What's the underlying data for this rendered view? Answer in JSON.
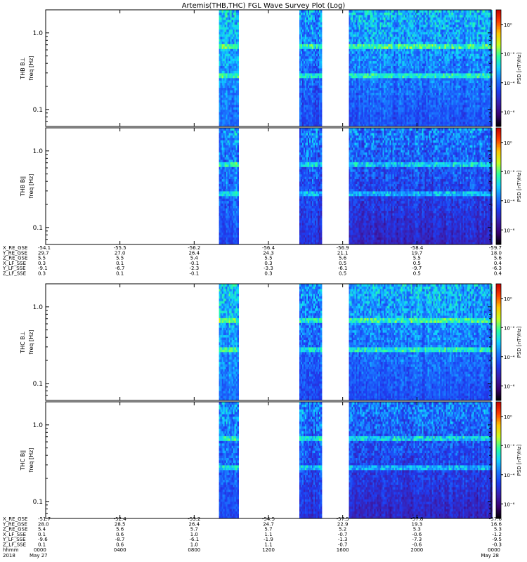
{
  "title": "Artemis(THB,THC) FGL Wave Survey Plot (Log)",
  "colorbar": {
    "label": "PSD [nT²/Hz]",
    "tick_labels": [
      "10⁰",
      "10⁻²",
      "10⁻⁴",
      "10⁻⁶"
    ],
    "tick_exponents": [
      0,
      -2,
      -4,
      -6
    ],
    "colors": [
      "#000000",
      "#3a0070",
      "#3a1fb0",
      "#1e3cf0",
      "#1a78ff",
      "#10d2ff",
      "#28ff9e",
      "#c8ff1e",
      "#ffc400",
      "#ff3c00",
      "#c80000"
    ]
  },
  "chart_data": [
    {
      "type": "heatmap",
      "ylabel": "THB B⊥",
      "yunits": "freq [Hz]",
      "scale": "log",
      "ylim": [
        0.06,
        2.0
      ],
      "yticks": [
        {
          "value": 1.0,
          "label": "1.0"
        },
        {
          "value": 0.1,
          "label": "0.1"
        }
      ],
      "zlabel": "PSD [nT²/Hz]",
      "zlim_exponent": [
        -7,
        1
      ],
      "data_segments": [
        {
          "start": "0920",
          "end": "1020",
          "psd_log_range": [
            -4.5,
            -3
          ]
        },
        {
          "start": "1340",
          "end": "1450",
          "psd_log_range": [
            -5,
            -3.5
          ]
        },
        {
          "start": "1620",
          "end": "2420",
          "psd_log_range": [
            -5,
            -3.2
          ]
        }
      ]
    },
    {
      "type": "heatmap",
      "ylabel": "THB B∥",
      "yunits": "freq [Hz]",
      "scale": "log",
      "ylim": [
        0.06,
        2.0
      ],
      "yticks": [
        {
          "value": 1.0,
          "label": "1.0"
        },
        {
          "value": 0.1,
          "label": "0.1"
        }
      ],
      "zlabel": "PSD [nT²/Hz]",
      "zlim_exponent": [
        -7,
        1
      ],
      "data_segments": [
        {
          "start": "0920",
          "end": "1020",
          "psd_log_range": [
            -5,
            -3.5
          ]
        },
        {
          "start": "1340",
          "end": "1450",
          "psd_log_range": [
            -5.5,
            -3.8
          ]
        },
        {
          "start": "1620",
          "end": "2420",
          "psd_log_range": [
            -6,
            -3.8
          ]
        }
      ]
    },
    {
      "type": "heatmap",
      "ylabel": "THC B⊥",
      "yunits": "freq [Hz]",
      "scale": "log",
      "ylim": [
        0.06,
        2.0
      ],
      "yticks": [
        {
          "value": 1.0,
          "label": "1.0"
        },
        {
          "value": 0.1,
          "label": "0.1"
        }
      ],
      "zlabel": "PSD [nT²/Hz]",
      "zlim_exponent": [
        -7,
        1
      ],
      "data_segments": [
        {
          "start": "0920",
          "end": "1020",
          "psd_log_range": [
            -4.5,
            -3
          ]
        },
        {
          "start": "1340",
          "end": "1450",
          "psd_log_range": [
            -5,
            -3.5
          ]
        },
        {
          "start": "1620",
          "end": "2420",
          "psd_log_range": [
            -5,
            -3.2
          ]
        }
      ]
    },
    {
      "type": "heatmap",
      "ylabel": "THC B∥",
      "yunits": "freq [Hz]",
      "scale": "log",
      "ylim": [
        0.06,
        2.0
      ],
      "yticks": [
        {
          "value": 1.0,
          "label": "1.0"
        },
        {
          "value": 0.1,
          "label": "0.1"
        }
      ],
      "zlabel": "PSD [nT²/Hz]",
      "zlim_exponent": [
        -7,
        1
      ],
      "data_segments": [
        {
          "start": "0920",
          "end": "1020",
          "psd_log_range": [
            -5,
            -3.5
          ]
        },
        {
          "start": "1340",
          "end": "1450",
          "psd_log_range": [
            -5.5,
            -3.8
          ]
        },
        {
          "start": "1620",
          "end": "2420",
          "psd_log_range": [
            -6,
            -3.8
          ]
        }
      ]
    }
  ],
  "x_axis": {
    "time_ticks": [
      "0000",
      "0400",
      "0800",
      "1200",
      "1600",
      "2000",
      "0000"
    ],
    "tick_hours": [
      0,
      4,
      8,
      12,
      16,
      20,
      24
    ],
    "range_hours": [
      0,
      24
    ]
  },
  "ephemeris": [
    {
      "tick_hours": [
        0,
        4,
        8,
        12,
        16,
        20,
        24
      ],
      "rows": [
        {
          "label": "X_RE_GSE",
          "values": [
            "-54.1",
            "-55.5",
            "-56.2",
            "-56.4",
            "-56.9",
            "-58.4",
            "-59.7"
          ]
        },
        {
          "label": "Y_RE_GSE",
          "values": [
            "29.7",
            "27.0",
            "26.4",
            "24.3",
            "21.1",
            "19.7",
            "18.0"
          ]
        },
        {
          "label": "Z_RE_GSE",
          "values": [
            "5.5",
            "5.5",
            "5.4",
            "5.5",
            "5.6",
            "5.5",
            "5.6"
          ]
        },
        {
          "label": "X_LF_SSE",
          "values": [
            "0.3",
            "0.1",
            "-0.1",
            "0.3",
            "0.5",
            "0.5",
            "0.4"
          ]
        },
        {
          "label": "Y_LF_SSE",
          "values": [
            "-9.1",
            "-6.7",
            "-2.3",
            "-3.3",
            "-6.1",
            "-9.7",
            "-6.3"
          ]
        },
        {
          "label": "Z_LF_SSE",
          "values": [
            "0.3",
            "0.1",
            "-0.1",
            "0.3",
            "0.5",
            "0.5",
            "0.4"
          ]
        }
      ]
    },
    {
      "tick_hours": [
        0,
        4,
        8,
        12,
        16,
        20,
        24
      ],
      "rows": [
        {
          "label": "X_RE_GSE",
          "values": [
            "-51.7",
            "-52.4",
            "-53.2",
            "-54.5",
            "-57.5",
            "-57.8",
            "-57.6"
          ]
        },
        {
          "label": "Y_RE_GSE",
          "values": [
            "28.0",
            "28.5",
            "26.4",
            "24.7",
            "22.9",
            "19.3",
            "16.6"
          ]
        },
        {
          "label": "Z_RE_GSE",
          "values": [
            "5.4",
            "5.6",
            "5.7",
            "5.7",
            "5.2",
            "5.3",
            "5.3"
          ]
        },
        {
          "label": "X_LF_SSE",
          "values": [
            "0.1",
            "0.6",
            "1.0",
            "1.1",
            "-0.7",
            "-0.6",
            "-1.2"
          ]
        },
        {
          "label": "Y_LF_SSE",
          "values": [
            "-9.6",
            "-8.7",
            "-6.1",
            "-1.9",
            "-1.3",
            "-7.3",
            "-9.5"
          ]
        },
        {
          "label": "Z_LF_SSE",
          "values": [
            "0.1",
            "0.6",
            "1.0",
            "1.1",
            "-0.7",
            "-0.6",
            "-0.3"
          ]
        }
      ]
    }
  ],
  "footer": {
    "hhmm_label": "hhmm",
    "year_label": "2018",
    "start_date": "May 27",
    "end_date": "May 28",
    "time_ticks": [
      "0000",
      "0400",
      "0800",
      "1200",
      "1600",
      "2000",
      "0000"
    ]
  }
}
